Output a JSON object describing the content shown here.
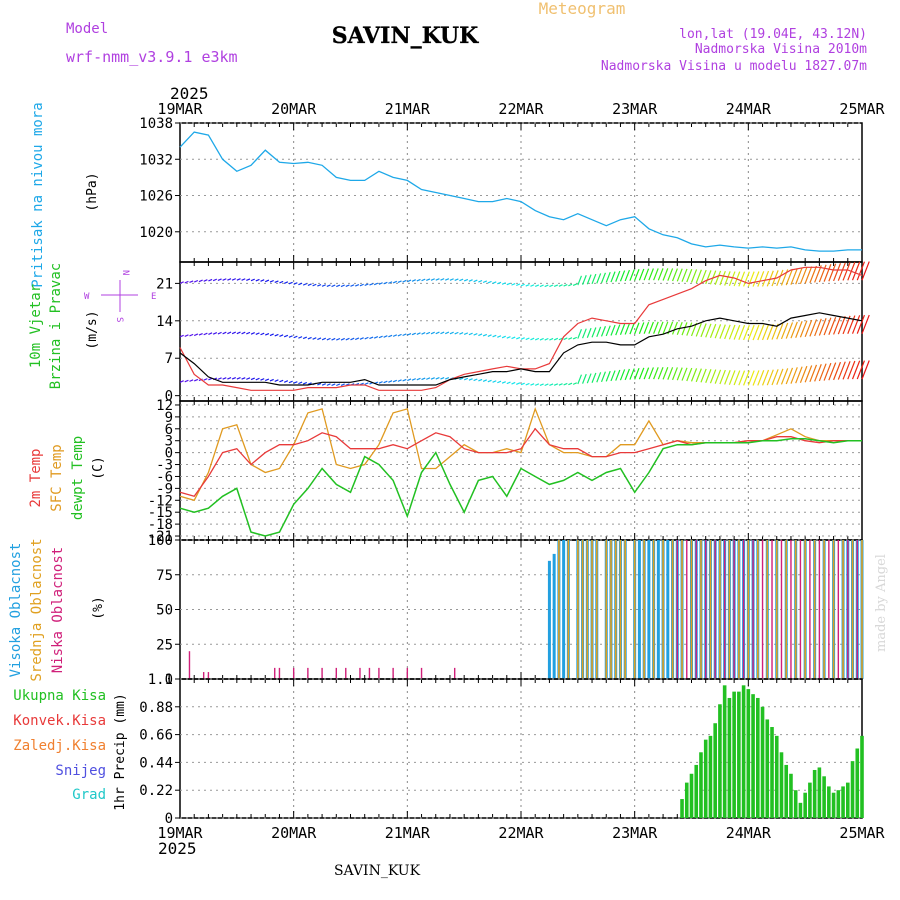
{
  "header": {
    "model_label": "Model",
    "model_name": "wrf-nmm_v3.9.1  e3km",
    "station": "SAVIN_KUK",
    "product": "Meteogram",
    "lonlat": "lon,lat (19.04E, 43.12N)",
    "elevation": "Nadmorska Visina 2010m",
    "model_elevation": "Nadmorska Visina u modelu 1827.07m",
    "year_top": "2025",
    "year_bottom": "2025",
    "footer_station": "SAVIN_KUK",
    "credit": "made by Angel"
  },
  "colors": {
    "pressure": "#1ea8e8",
    "temp2m": "#e83a3a",
    "sfc": "#e09a20",
    "dewpt": "#22c022",
    "high_cloud": "#22a0e0",
    "mid_cloud": "#e0a020",
    "low_cloud": "#d0207a",
    "precip": "#22c022",
    "conv": "#e83a3a",
    "frozen": "#f08030",
    "snow": "#5050e0",
    "graupel": "#20c8c8",
    "title_purple": "#b040e0",
    "meteogram_orange": "#f0c070"
  },
  "chart_data": [
    {
      "type": "line",
      "panel": "pressure",
      "title": "Pritisak na nivou mora",
      "ylabel": "(hPa)",
      "ylim": [
        1015,
        1038
      ],
      "yticks": [
        "1038",
        "1032",
        "1026",
        "1020"
      ],
      "ytick_values": [
        1038,
        1032,
        1026,
        1020
      ],
      "xlabels": [
        "19MAR",
        "20MAR",
        "21MAR",
        "22MAR",
        "23MAR",
        "24MAR",
        "25MAR"
      ],
      "x_unit": "hours",
      "x": [
        0,
        3,
        6,
        9,
        12,
        15,
        18,
        21,
        24,
        27,
        30,
        33,
        36,
        39,
        42,
        45,
        48,
        51,
        54,
        57,
        60,
        63,
        66,
        69,
        72,
        75,
        78,
        81,
        84,
        87,
        90,
        93,
        96,
        99,
        102,
        105,
        108,
        111,
        114,
        117,
        120,
        123,
        126,
        129,
        132,
        135,
        138,
        141,
        144
      ],
      "series": [
        {
          "name": "MSLP",
          "values": [
            1034,
            1036.5,
            1036,
            1032,
            1030,
            1031,
            1033.5,
            1031.5,
            1031.3,
            1031.5,
            1031,
            1029,
            1028.5,
            1028.5,
            1030,
            1029,
            1028.5,
            1027,
            1026.5,
            1026,
            1025.5,
            1025,
            1025,
            1025.5,
            1025,
            1023.5,
            1022.5,
            1022,
            1023,
            1022,
            1021,
            1022,
            1022.5,
            1020.5,
            1019.5,
            1019,
            1018,
            1017.5,
            1017.8,
            1017.5,
            1017.3,
            1017.5,
            1017.3,
            1017.5,
            1017,
            1016.8,
            1016.8,
            1017,
            1017
          ]
        }
      ]
    },
    {
      "type": "line",
      "panel": "wind",
      "title": "10m Vjetar",
      "subtitle": "Brzina i Pravac",
      "ylabel": "(m/s)",
      "compass": [
        "N",
        "E",
        "S",
        "W"
      ],
      "ylim": [
        -1,
        25
      ],
      "yticks": [
        "21",
        "14",
        "7",
        "0"
      ],
      "ytick_values": [
        21,
        14,
        7,
        0
      ],
      "x_unit": "hours",
      "x": [
        0,
        3,
        6,
        9,
        12,
        15,
        18,
        21,
        24,
        27,
        30,
        33,
        36,
        39,
        42,
        45,
        48,
        51,
        54,
        57,
        60,
        63,
        66,
        69,
        72,
        75,
        78,
        81,
        84,
        87,
        90,
        93,
        96,
        99,
        102,
        105,
        108,
        111,
        114,
        117,
        120,
        123,
        126,
        129,
        132,
        135,
        138,
        141,
        144
      ],
      "series": [
        {
          "name": "Speed (mean)",
          "color": "#000000",
          "values": [
            8,
            6,
            3.5,
            2.5,
            2.5,
            2.5,
            2.5,
            2,
            2,
            2,
            2.5,
            2.5,
            2.5,
            3,
            2,
            2,
            2,
            2,
            2,
            3,
            3.5,
            4,
            4.5,
            4.5,
            5,
            4.5,
            4.5,
            8,
            9.5,
            10,
            10,
            9.5,
            9.5,
            11,
            11.5,
            12.5,
            13,
            14,
            14.5,
            14,
            13.5,
            13.5,
            13,
            14.5,
            15,
            15.5,
            15,
            14.5,
            14
          ]
        },
        {
          "name": "Gust",
          "color": "#e83a3a",
          "values": [
            9,
            4,
            2,
            2,
            1.5,
            1,
            1,
            1,
            1,
            1.5,
            1.5,
            1.5,
            2,
            2,
            1,
            1,
            1,
            1,
            1.5,
            3,
            4,
            4.5,
            5,
            5.5,
            5,
            5,
            6,
            11,
            13.5,
            14.5,
            14,
            13.5,
            13.5,
            17,
            18,
            19,
            20,
            21.5,
            22.5,
            22,
            21,
            21.5,
            22,
            23.5,
            24,
            24,
            23.5,
            23.5,
            22.5
          ]
        }
      ]
    },
    {
      "type": "line",
      "panel": "temperature",
      "labels": [
        "2m Temp",
        "SFC Temp",
        "dewpt Temp"
      ],
      "ylabel": "(C)",
      "ylim": [
        -22,
        13
      ],
      "yticks": [
        "12",
        "9",
        "6",
        "3",
        "0",
        "-3",
        "-6",
        "-9",
        "-12",
        "-15",
        "-18",
        "-21"
      ],
      "ytick_values": [
        12,
        9,
        6,
        3,
        0,
        -3,
        -6,
        -9,
        -12,
        -15,
        -18,
        -21
      ],
      "x_unit": "hours",
      "x": [
        0,
        3,
        6,
        9,
        12,
        15,
        18,
        21,
        24,
        27,
        30,
        33,
        36,
        39,
        42,
        45,
        48,
        51,
        54,
        57,
        60,
        63,
        66,
        69,
        72,
        75,
        78,
        81,
        84,
        87,
        90,
        93,
        96,
        99,
        102,
        105,
        108,
        111,
        114,
        117,
        120,
        123,
        126,
        129,
        132,
        135,
        138,
        141,
        144
      ],
      "series": [
        {
          "name": "2m Temp",
          "values": [
            -10,
            -11,
            -6,
            0,
            1,
            -3,
            0,
            2,
            2,
            3,
            5,
            4,
            1,
            1,
            1,
            2,
            1,
            3,
            5,
            4,
            1,
            0,
            0,
            0,
            1,
            6,
            2,
            1,
            1,
            -1,
            -1,
            0,
            0,
            1,
            2,
            3,
            2,
            2.5,
            2.5,
            2.5,
            3,
            3,
            4,
            4,
            3,
            2.5,
            3,
            3,
            3
          ]
        },
        {
          "name": "SFC Temp",
          "values": [
            -11,
            -12,
            -5,
            6,
            7,
            -3,
            -5,
            -4,
            2,
            10,
            11,
            -3,
            -4,
            -3,
            2,
            10,
            11,
            -4,
            -4,
            -1,
            2,
            0,
            0,
            1,
            0,
            11,
            2,
            0,
            0,
            -1,
            -1,
            2,
            2,
            8,
            2,
            3,
            2.5,
            2.5,
            2.5,
            2.5,
            3,
            3,
            4.5,
            6,
            4,
            3,
            3,
            3,
            3
          ]
        },
        {
          "name": "dewpt Temp",
          "values": [
            -14,
            -15,
            -14,
            -11,
            -9,
            -20,
            -21,
            -20,
            -13,
            -9,
            -4,
            -8,
            -10,
            -1,
            -3,
            -7,
            -16,
            -5,
            0,
            -8,
            -15,
            -7,
            -6,
            -11,
            -4,
            -6,
            -8,
            -7,
            -5,
            -7,
            -5,
            -4,
            -10,
            -5,
            1,
            2,
            2,
            2.5,
            2.5,
            2.5,
            2.5,
            3,
            3,
            3.5,
            3.5,
            3,
            2.5,
            3,
            3
          ]
        }
      ]
    },
    {
      "type": "bar",
      "panel": "cloud",
      "labels": [
        "Visoka Oblacnost",
        "Srednja Oblacnost",
        "Niska Oblacnost"
      ],
      "ylabel": "(%)",
      "ylim": [
        0,
        100
      ],
      "yticks": [
        "100",
        "75",
        "50",
        "25",
        "0"
      ],
      "ytick_values": [
        100,
        75,
        50,
        25,
        0
      ],
      "x_unit": "hours",
      "high_cloud": {
        "x": [
          78,
          79,
          80,
          81,
          82,
          84,
          85,
          86,
          87,
          88,
          90,
          91,
          92,
          93,
          94,
          96,
          97,
          98,
          99,
          100,
          101,
          102,
          103,
          104,
          105,
          106,
          108,
          109,
          110,
          111,
          112,
          113,
          114,
          115,
          116,
          117,
          118,
          119,
          120,
          121,
          122,
          124,
          126,
          128,
          130,
          132,
          134,
          136,
          138,
          140,
          141,
          142,
          143,
          144
        ],
        "values": [
          85,
          90,
          100,
          100,
          100,
          100,
          100,
          100,
          100,
          100,
          100,
          100,
          100,
          100,
          100,
          100,
          100,
          100,
          100,
          100,
          100,
          100,
          100,
          100,
          100,
          100,
          100,
          100,
          100,
          100,
          100,
          100,
          100,
          100,
          100,
          100,
          100,
          100,
          100,
          100,
          100,
          100,
          100,
          100,
          100,
          100,
          100,
          100,
          100,
          100,
          100,
          100,
          100,
          100
        ]
      },
      "mid_cloud": {
        "x": [
          80,
          82,
          84,
          85,
          86,
          87,
          88,
          90,
          91,
          92,
          93,
          94,
          96,
          98,
          100,
          102,
          104,
          106,
          108,
          110,
          112,
          114,
          116,
          118,
          120,
          122,
          124,
          126,
          128,
          130,
          132,
          134,
          136,
          138,
          140,
          142,
          144
        ],
        "values": [
          100,
          100,
          100,
          100,
          100,
          100,
          100,
          100,
          100,
          100,
          100,
          100,
          100,
          100,
          100,
          100,
          100,
          100,
          100,
          100,
          100,
          100,
          100,
          100,
          100,
          100,
          100,
          100,
          100,
          100,
          100,
          100,
          100,
          100,
          100,
          100,
          100
        ]
      },
      "low_cloud": {
        "x": [
          2,
          5,
          6,
          20,
          21,
          24,
          27,
          30,
          33,
          35,
          38,
          40,
          42,
          45,
          48,
          51,
          58,
          105,
          107,
          109,
          111,
          113,
          115,
          117,
          119,
          121,
          123,
          125,
          127,
          129,
          131,
          133,
          135,
          137,
          139,
          141,
          143
        ],
        "values": [
          20,
          5,
          5,
          8,
          8,
          8,
          8,
          8,
          8,
          8,
          8,
          8,
          8,
          8,
          8,
          8,
          8,
          100,
          100,
          100,
          100,
          100,
          100,
          100,
          100,
          100,
          100,
          100,
          100,
          100,
          100,
          100,
          100,
          100,
          100,
          100,
          100
        ]
      }
    },
    {
      "type": "bar",
      "panel": "precip",
      "labels": [
        "Ukupna Kisa",
        "Konvek.Kisa",
        "Zaledj.Kisa",
        "Snijeg",
        "Grad"
      ],
      "ylabel": "1hr Precip (mm)",
      "ylim": [
        0,
        1.1
      ],
      "yticks": [
        "1.1",
        "0.88",
        "0.66",
        "0.44",
        "0.22",
        "0"
      ],
      "ytick_values": [
        1.1,
        0.88,
        0.66,
        0.44,
        0.22,
        0
      ],
      "x_unit": "hours",
      "x": [
        106,
        107,
        108,
        109,
        110,
        111,
        112,
        113,
        114,
        115,
        116,
        117,
        118,
        119,
        120,
        121,
        122,
        123,
        124,
        125,
        126,
        127,
        128,
        129,
        130,
        131,
        132,
        133,
        134,
        135,
        136,
        137,
        138,
        139,
        140,
        141,
        142,
        143,
        144
      ],
      "values": [
        0.15,
        0.28,
        0.35,
        0.42,
        0.52,
        0.62,
        0.65,
        0.75,
        0.9,
        1.05,
        0.95,
        1.0,
        1.0,
        1.05,
        1.02,
        0.98,
        0.95,
        0.88,
        0.78,
        0.72,
        0.65,
        0.52,
        0.42,
        0.35,
        0.22,
        0.12,
        0.2,
        0.28,
        0.38,
        0.4,
        0.33,
        0.25,
        0.2,
        0.22,
        0.25,
        0.28,
        0.45,
        0.55,
        0.65
      ]
    }
  ]
}
